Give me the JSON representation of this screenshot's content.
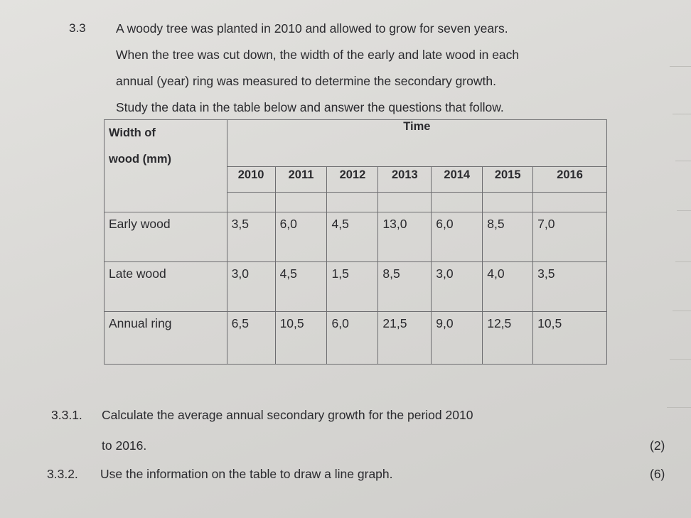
{
  "question": {
    "number": "3.3",
    "intro_lines": [
      "A woody tree was planted in 2010 and allowed to grow for seven years.",
      "When the tree was cut down, the width of the early and late wood in each",
      "annual (year) ring was measured to determine the secondary growth.",
      "Study the data in the table below and answer the questions that follow."
    ]
  },
  "table": {
    "corner_label_line1": "Width of",
    "corner_label_line2": "wood (mm)",
    "time_header": "Time",
    "years": [
      "2010",
      "2011",
      "2012",
      "2013",
      "2014",
      "2015",
      "2016"
    ],
    "rows": [
      {
        "label": "Early wood",
        "values": [
          "3,5",
          "6,0",
          "4,5",
          "13,0",
          "6,0",
          "8,5",
          "7,0"
        ]
      },
      {
        "label": "Late wood",
        "values": [
          "3,0",
          "4,5",
          "1,5",
          "8,5",
          "3,0",
          "4,0",
          "3,5"
        ]
      },
      {
        "label": "Annual ring",
        "values": [
          "6,5",
          "10,5",
          "6,0",
          "21,5",
          "9,0",
          "12,5",
          "10,5"
        ]
      }
    ]
  },
  "subquestions": [
    {
      "number": "3.3.1.",
      "line1": "Calculate the average annual secondary growth for the period  2010",
      "line2": "to 2016.",
      "marks": "(2)"
    },
    {
      "number": "3.3.2.",
      "line1": "Use the information on the table to draw a line graph.",
      "marks": "(6)"
    }
  ]
}
